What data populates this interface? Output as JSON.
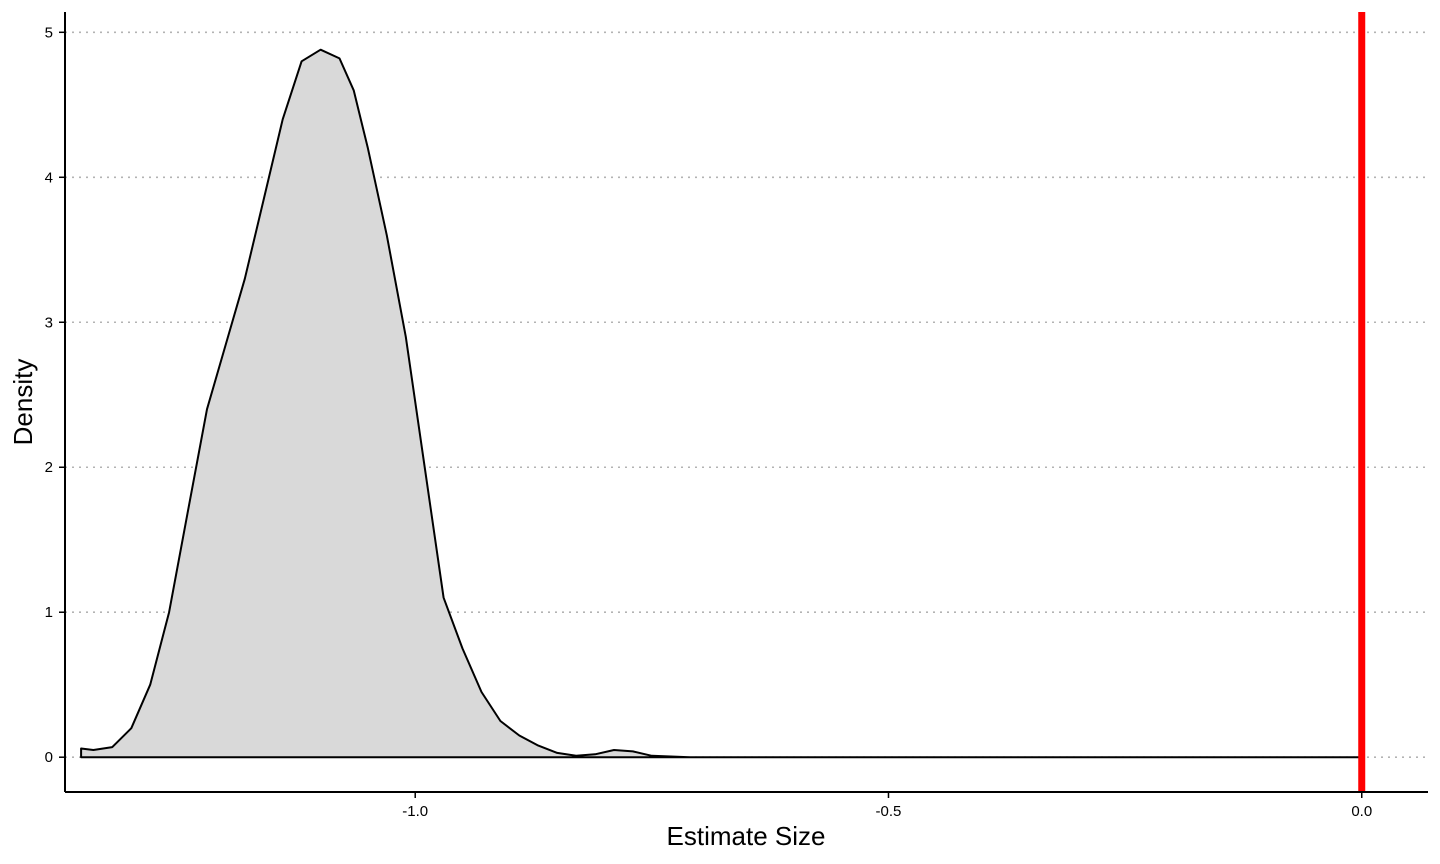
{
  "chart_data": {
    "type": "area",
    "title": "",
    "xlabel": "Estimate Size",
    "ylabel": "Density",
    "xlim": [
      -1.37,
      0.07
    ],
    "ylim": [
      -0.24,
      5.14
    ],
    "x_ticks": [
      -1.0,
      -0.5,
      0.0
    ],
    "x_tick_labels": [
      "-1.0",
      "-0.5",
      "0.0"
    ],
    "y_ticks": [
      0,
      1,
      2,
      3,
      4,
      5
    ],
    "y_tick_labels": [
      "0",
      "1",
      "2",
      "3",
      "4",
      "5"
    ],
    "grid": "horizontal dotted",
    "legend": "none",
    "density_curve": {
      "x": [
        -1.353,
        -1.34,
        -1.32,
        -1.3,
        -1.28,
        -1.26,
        -1.24,
        -1.22,
        -1.2,
        -1.18,
        -1.16,
        -1.14,
        -1.12,
        -1.1,
        -1.08,
        -1.065,
        -1.05,
        -1.03,
        -1.01,
        -0.99,
        -0.97,
        -0.95,
        -0.93,
        -0.91,
        -0.89,
        -0.87,
        -0.85,
        -0.83,
        -0.81,
        -0.79,
        -0.77,
        -0.75,
        -0.73,
        -0.71,
        -0.69,
        -0.65,
        -0.6,
        -0.5,
        -0.4,
        -0.3,
        -0.2,
        -0.1,
        -0.003
      ],
      "y": [
        0.06,
        0.05,
        0.07,
        0.2,
        0.5,
        1.0,
        1.7,
        2.4,
        2.85,
        3.3,
        3.85,
        4.4,
        4.8,
        4.88,
        4.82,
        4.6,
        4.2,
        3.6,
        2.9,
        2.0,
        1.1,
        0.75,
        0.45,
        0.25,
        0.15,
        0.08,
        0.03,
        0.01,
        0.02,
        0.05,
        0.04,
        0.01,
        0.005,
        0.0,
        0.0,
        0.0,
        0.0,
        0.0,
        0.0,
        0.0,
        0.0,
        0.0,
        0.0
      ]
    },
    "reference_line": {
      "x": 0.0,
      "color": "#ff0000"
    },
    "colors": {
      "fill": "#d9d9d9",
      "line": "#000000",
      "grid": "#b3b3b3",
      "reference": "#ff0000"
    }
  }
}
